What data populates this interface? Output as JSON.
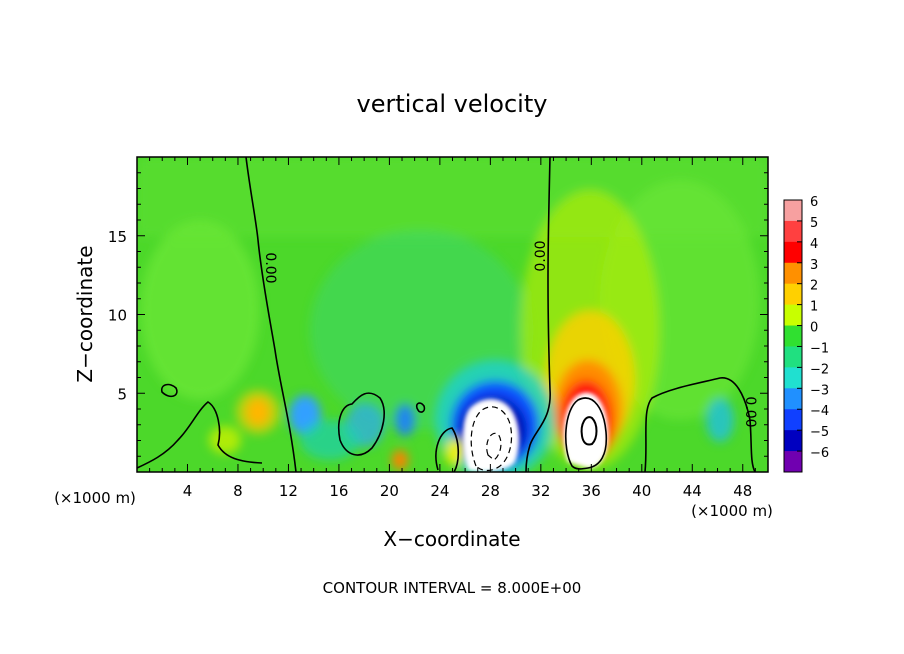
{
  "chart_data": {
    "type": "heatmap",
    "title": "vertical velocity",
    "xlabel": "X−coordinate",
    "ylabel": "Z−coordinate",
    "x_unit_left": "(×1000 m)",
    "x_unit_right": "(×1000 m)",
    "xlim": [
      0,
      50
    ],
    "ylim": [
      0,
      20
    ],
    "x_ticks": [
      4,
      8,
      12,
      16,
      20,
      24,
      28,
      32,
      36,
      40,
      44,
      48
    ],
    "y_ticks": [
      5,
      10,
      15
    ],
    "colorbar": {
      "levels": [
        6,
        5,
        4,
        3,
        2,
        1,
        0,
        -1,
        -2,
        -3,
        -4,
        -5,
        -6
      ],
      "level_labels": [
        "6",
        "5",
        "4",
        "3",
        "2",
        "1",
        "0",
        "−1",
        "−2",
        "−3",
        "−4",
        "−5",
        "−6"
      ],
      "colors": [
        "#f7a0a0",
        "#ff4040",
        "#ff0000",
        "#ff9000",
        "#ffd000",
        "#c8ff00",
        "#30e030",
        "#20e080",
        "#20e0d0",
        "#2090ff",
        "#1040ff",
        "#0000c0",
        "#7000b0"
      ]
    },
    "contour_labels": [
      "0.00",
      "0.00",
      "0.00"
    ],
    "contour_interval_text": "CONTOUR INTERVAL = 8.000E+00",
    "features": [
      {
        "name": "downdraft",
        "x": 28,
        "z": 2.5,
        "sign": "negative"
      },
      {
        "name": "updraft",
        "x": 35.5,
        "z": 3,
        "sign": "positive"
      }
    ]
  }
}
